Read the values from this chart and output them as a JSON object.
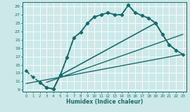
{
  "xlabel": "Humidex (Indice chaleur)",
  "ylabel": "",
  "bg_color": "#cce8e8",
  "grid_color": "#ffffff",
  "line_color": "#1a6b6b",
  "xlim": [
    -0.5,
    23.5
  ],
  "ylim": [
    8.5,
    30.0
  ],
  "xticks": [
    0,
    1,
    2,
    3,
    4,
    5,
    6,
    7,
    8,
    9,
    10,
    11,
    12,
    13,
    14,
    15,
    16,
    17,
    18,
    19,
    20,
    21,
    22,
    23
  ],
  "yticks": [
    9,
    11,
    13,
    15,
    17,
    19,
    21,
    23,
    25,
    27,
    29
  ],
  "series": [
    {
      "x": [
        0,
        1,
        2,
        3,
        4,
        5,
        6,
        7,
        8,
        9,
        10,
        11,
        12,
        13,
        14,
        15,
        16,
        17,
        18,
        19
      ],
      "y": [
        13.5,
        12.0,
        10.8,
        9.5,
        9.2,
        12.5,
        16.8,
        21.5,
        22.8,
        25.0,
        26.5,
        27.0,
        27.5,
        27.0,
        27.0,
        29.3,
        27.5,
        26.8,
        26.2,
        25.0
      ],
      "marker": "D",
      "markersize": 2.5,
      "linewidth": 1.2,
      "linestyle": "--"
    },
    {
      "x": [
        2,
        3,
        4,
        5,
        6,
        7,
        8,
        9,
        10,
        11,
        12,
        13,
        14,
        15,
        16,
        17,
        18,
        19,
        20,
        21,
        22
      ],
      "y": [
        10.8,
        9.5,
        9.2,
        12.5,
        16.8,
        21.5,
        22.8,
        25.0,
        26.5,
        27.0,
        27.5,
        27.0,
        27.0,
        29.3,
        27.5,
        26.8,
        26.2,
        25.0,
        22.3,
        19.8,
        18.5
      ],
      "marker": "D",
      "markersize": 2.5,
      "linewidth": 1.2,
      "linestyle": "-"
    },
    {
      "x": [
        3,
        4,
        5,
        19,
        20,
        21,
        22,
        23
      ],
      "y": [
        9.5,
        9.2,
        12.5,
        25.0,
        22.3,
        19.8,
        18.5,
        17.5
      ],
      "marker": "D",
      "markersize": 2.5,
      "linewidth": 1.2,
      "linestyle": "-"
    },
    {
      "x": [
        0,
        23
      ],
      "y": [
        10.5,
        17.5
      ],
      "marker": null,
      "markersize": 0,
      "linewidth": 1.0,
      "linestyle": "-"
    },
    {
      "x": [
        3,
        23
      ],
      "y": [
        10.8,
        22.3
      ],
      "marker": null,
      "markersize": 0,
      "linewidth": 1.0,
      "linestyle": "-"
    }
  ]
}
